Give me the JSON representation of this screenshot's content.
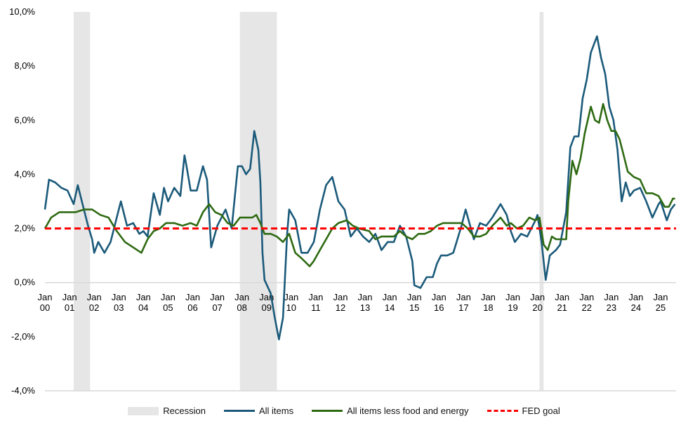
{
  "chart_data": {
    "type": "line",
    "title": "",
    "xlabel": "",
    "ylabel": "",
    "ylim": [
      -4,
      10
    ],
    "yticks": [
      "-4,0%",
      "-2,0%",
      "0,0%",
      "2,0%",
      "4,0%",
      "6,0%",
      "8,0%",
      "10,0%"
    ],
    "ytick_values": [
      -4,
      -2,
      0,
      2,
      4,
      6,
      8,
      10
    ],
    "xticks": [
      [
        "Jan",
        "00"
      ],
      [
        "Jan",
        "01"
      ],
      [
        "Jan",
        "02"
      ],
      [
        "Jan",
        "03"
      ],
      [
        "Jan",
        "04"
      ],
      [
        "Jan",
        "05"
      ],
      [
        "Jan",
        "06"
      ],
      [
        "Jan",
        "07"
      ],
      [
        "Jan",
        "08"
      ],
      [
        "Jan",
        "09"
      ],
      [
        "Jan",
        "10"
      ],
      [
        "Jan",
        "11"
      ],
      [
        "Jan",
        "12"
      ],
      [
        "Jan",
        "13"
      ],
      [
        "Jan",
        "14"
      ],
      [
        "Jan",
        "15"
      ],
      [
        "Jan",
        "16"
      ],
      [
        "Jan",
        "17"
      ],
      [
        "Jan",
        "18"
      ],
      [
        "Jan",
        "19"
      ],
      [
        "Jan",
        "20"
      ],
      [
        "Jan",
        "21"
      ],
      [
        "Jan",
        "22"
      ],
      [
        "Jan",
        "23"
      ],
      [
        "Jan",
        "24"
      ],
      [
        "Jan",
        "25"
      ]
    ],
    "xlim": [
      "2000-01",
      "2025-08"
    ],
    "grid": false,
    "legend_position": "bottom",
    "recessions": [
      {
        "start": "2001-03",
        "end": "2001-11"
      },
      {
        "start": "2007-12",
        "end": "2009-06"
      },
      {
        "start": "2020-02",
        "end": "2020-04"
      }
    ],
    "reference_line": {
      "name": "FED goal",
      "value": 2.0,
      "color": "#ff0000",
      "style": "dashed"
    },
    "series": [
      {
        "name": "All items",
        "color": "#1b5a7a",
        "points": [
          [
            "2000-01",
            2.7
          ],
          [
            "2000-03",
            3.8
          ],
          [
            "2000-06",
            3.7
          ],
          [
            "2000-09",
            3.5
          ],
          [
            "2000-12",
            3.4
          ],
          [
            "2001-03",
            2.9
          ],
          [
            "2001-05",
            3.6
          ],
          [
            "2001-08",
            2.7
          ],
          [
            "2001-10",
            2.1
          ],
          [
            "2001-12",
            1.6
          ],
          [
            "2002-01",
            1.1
          ],
          [
            "2002-03",
            1.5
          ],
          [
            "2002-06",
            1.1
          ],
          [
            "2002-09",
            1.5
          ],
          [
            "2002-12",
            2.4
          ],
          [
            "2003-02",
            3.0
          ],
          [
            "2003-05",
            2.1
          ],
          [
            "2003-08",
            2.2
          ],
          [
            "2003-11",
            1.8
          ],
          [
            "2004-01",
            1.9
          ],
          [
            "2004-03",
            1.7
          ],
          [
            "2004-06",
            3.3
          ],
          [
            "2004-09",
            2.5
          ],
          [
            "2004-11",
            3.5
          ],
          [
            "2005-01",
            3.0
          ],
          [
            "2005-04",
            3.5
          ],
          [
            "2005-07",
            3.2
          ],
          [
            "2005-09",
            4.7
          ],
          [
            "2005-10",
            4.3
          ],
          [
            "2005-12",
            3.4
          ],
          [
            "2006-03",
            3.4
          ],
          [
            "2006-06",
            4.3
          ],
          [
            "2006-08",
            3.8
          ],
          [
            "2006-10",
            1.3
          ],
          [
            "2007-01",
            2.1
          ],
          [
            "2007-05",
            2.7
          ],
          [
            "2007-08",
            2.0
          ],
          [
            "2007-11",
            4.3
          ],
          [
            "2008-01",
            4.3
          ],
          [
            "2008-03",
            4.0
          ],
          [
            "2008-05",
            4.2
          ],
          [
            "2008-07",
            5.6
          ],
          [
            "2008-09",
            4.9
          ],
          [
            "2008-10",
            3.7
          ],
          [
            "2008-11",
            1.1
          ],
          [
            "2008-12",
            0.1
          ],
          [
            "2009-03",
            -0.4
          ],
          [
            "2009-05",
            -1.3
          ],
          [
            "2009-07",
            -2.1
          ],
          [
            "2009-09",
            -1.3
          ],
          [
            "2009-11",
            1.8
          ],
          [
            "2009-12",
            2.7
          ],
          [
            "2010-03",
            2.3
          ],
          [
            "2010-06",
            1.1
          ],
          [
            "2010-09",
            1.1
          ],
          [
            "2010-12",
            1.5
          ],
          [
            "2011-03",
            2.7
          ],
          [
            "2011-06",
            3.6
          ],
          [
            "2011-09",
            3.9
          ],
          [
            "2011-12",
            3.0
          ],
          [
            "2012-03",
            2.7
          ],
          [
            "2012-06",
            1.7
          ],
          [
            "2012-09",
            2.0
          ],
          [
            "2012-12",
            1.7
          ],
          [
            "2013-03",
            1.5
          ],
          [
            "2013-06",
            1.8
          ],
          [
            "2013-09",
            1.2
          ],
          [
            "2013-12",
            1.5
          ],
          [
            "2014-03",
            1.5
          ],
          [
            "2014-06",
            2.1
          ],
          [
            "2014-09",
            1.7
          ],
          [
            "2014-12",
            0.8
          ],
          [
            "2015-01",
            -0.1
          ],
          [
            "2015-04",
            -0.2
          ],
          [
            "2015-07",
            0.2
          ],
          [
            "2015-10",
            0.2
          ],
          [
            "2015-12",
            0.7
          ],
          [
            "2016-02",
            1.0
          ],
          [
            "2016-05",
            1.0
          ],
          [
            "2016-08",
            1.1
          ],
          [
            "2016-12",
            2.1
          ],
          [
            "2017-02",
            2.7
          ],
          [
            "2017-06",
            1.6
          ],
          [
            "2017-09",
            2.2
          ],
          [
            "2017-12",
            2.1
          ],
          [
            "2018-03",
            2.4
          ],
          [
            "2018-07",
            2.9
          ],
          [
            "2018-10",
            2.5
          ],
          [
            "2018-12",
            1.9
          ],
          [
            "2019-02",
            1.5
          ],
          [
            "2019-05",
            1.8
          ],
          [
            "2019-08",
            1.7
          ],
          [
            "2019-12",
            2.3
          ],
          [
            "2020-01",
            2.5
          ],
          [
            "2020-03",
            1.5
          ],
          [
            "2020-05",
            0.1
          ],
          [
            "2020-07",
            1.0
          ],
          [
            "2020-10",
            1.2
          ],
          [
            "2020-12",
            1.4
          ],
          [
            "2021-03",
            2.6
          ],
          [
            "2021-05",
            5.0
          ],
          [
            "2021-07",
            5.4
          ],
          [
            "2021-09",
            5.4
          ],
          [
            "2021-11",
            6.8
          ],
          [
            "2022-01",
            7.5
          ],
          [
            "2022-03",
            8.5
          ],
          [
            "2022-06",
            9.1
          ],
          [
            "2022-08",
            8.3
          ],
          [
            "2022-10",
            7.7
          ],
          [
            "2022-12",
            6.5
          ],
          [
            "2023-02",
            6.0
          ],
          [
            "2023-04",
            4.9
          ],
          [
            "2023-06",
            3.0
          ],
          [
            "2023-08",
            3.7
          ],
          [
            "2023-10",
            3.2
          ],
          [
            "2023-12",
            3.4
          ],
          [
            "2024-03",
            3.5
          ],
          [
            "2024-06",
            3.0
          ],
          [
            "2024-09",
            2.4
          ],
          [
            "2024-12",
            2.9
          ],
          [
            "2025-01",
            3.0
          ],
          [
            "2025-04",
            2.3
          ],
          [
            "2025-06",
            2.7
          ],
          [
            "2025-08",
            2.9
          ]
        ]
      },
      {
        "name": "All items less food and energy",
        "color": "#2e6a12",
        "points": [
          [
            "2000-01",
            2.0
          ],
          [
            "2000-04",
            2.4
          ],
          [
            "2000-08",
            2.6
          ],
          [
            "2000-12",
            2.6
          ],
          [
            "2001-04",
            2.6
          ],
          [
            "2001-08",
            2.7
          ],
          [
            "2001-12",
            2.7
          ],
          [
            "2002-04",
            2.5
          ],
          [
            "2002-08",
            2.4
          ],
          [
            "2002-12",
            1.9
          ],
          [
            "2003-04",
            1.5
          ],
          [
            "2003-08",
            1.3
          ],
          [
            "2003-12",
            1.1
          ],
          [
            "2004-03",
            1.6
          ],
          [
            "2004-06",
            1.9
          ],
          [
            "2004-09",
            2.0
          ],
          [
            "2004-12",
            2.2
          ],
          [
            "2005-04",
            2.2
          ],
          [
            "2005-08",
            2.1
          ],
          [
            "2005-12",
            2.2
          ],
          [
            "2006-03",
            2.1
          ],
          [
            "2006-06",
            2.6
          ],
          [
            "2006-09",
            2.9
          ],
          [
            "2006-12",
            2.6
          ],
          [
            "2007-03",
            2.5
          ],
          [
            "2007-06",
            2.2
          ],
          [
            "2007-09",
            2.1
          ],
          [
            "2007-12",
            2.4
          ],
          [
            "2008-03",
            2.4
          ],
          [
            "2008-06",
            2.4
          ],
          [
            "2008-08",
            2.5
          ],
          [
            "2008-10",
            2.2
          ],
          [
            "2008-12",
            1.8
          ],
          [
            "2009-03",
            1.8
          ],
          [
            "2009-06",
            1.7
          ],
          [
            "2009-09",
            1.5
          ],
          [
            "2009-12",
            1.8
          ],
          [
            "2010-03",
            1.1
          ],
          [
            "2010-06",
            0.9
          ],
          [
            "2010-10",
            0.6
          ],
          [
            "2010-12",
            0.8
          ],
          [
            "2011-03",
            1.2
          ],
          [
            "2011-06",
            1.6
          ],
          [
            "2011-09",
            2.0
          ],
          [
            "2011-12",
            2.2
          ],
          [
            "2012-04",
            2.3
          ],
          [
            "2012-07",
            2.1
          ],
          [
            "2012-10",
            2.0
          ],
          [
            "2013-03",
            1.9
          ],
          [
            "2013-06",
            1.6
          ],
          [
            "2013-09",
            1.7
          ],
          [
            "2013-12",
            1.7
          ],
          [
            "2014-03",
            1.7
          ],
          [
            "2014-06",
            1.9
          ],
          [
            "2014-09",
            1.7
          ],
          [
            "2014-12",
            1.6
          ],
          [
            "2015-03",
            1.8
          ],
          [
            "2015-06",
            1.8
          ],
          [
            "2015-09",
            1.9
          ],
          [
            "2015-12",
            2.1
          ],
          [
            "2016-03",
            2.2
          ],
          [
            "2016-06",
            2.2
          ],
          [
            "2016-09",
            2.2
          ],
          [
            "2016-12",
            2.2
          ],
          [
            "2017-03",
            2.0
          ],
          [
            "2017-06",
            1.7
          ],
          [
            "2017-09",
            1.7
          ],
          [
            "2017-12",
            1.8
          ],
          [
            "2018-03",
            2.1
          ],
          [
            "2018-07",
            2.4
          ],
          [
            "2018-10",
            2.1
          ],
          [
            "2018-12",
            2.2
          ],
          [
            "2019-03",
            2.0
          ],
          [
            "2019-06",
            2.1
          ],
          [
            "2019-09",
            2.4
          ],
          [
            "2019-12",
            2.3
          ],
          [
            "2020-02",
            2.4
          ],
          [
            "2020-04",
            1.4
          ],
          [
            "2020-06",
            1.2
          ],
          [
            "2020-08",
            1.7
          ],
          [
            "2020-10",
            1.6
          ],
          [
            "2020-12",
            1.6
          ],
          [
            "2021-03",
            1.6
          ],
          [
            "2021-04",
            3.0
          ],
          [
            "2021-06",
            4.5
          ],
          [
            "2021-08",
            4.0
          ],
          [
            "2021-10",
            4.6
          ],
          [
            "2021-12",
            5.5
          ],
          [
            "2022-03",
            6.5
          ],
          [
            "2022-05",
            6.0
          ],
          [
            "2022-07",
            5.9
          ],
          [
            "2022-09",
            6.6
          ],
          [
            "2022-11",
            6.0
          ],
          [
            "2023-01",
            5.6
          ],
          [
            "2023-03",
            5.6
          ],
          [
            "2023-05",
            5.3
          ],
          [
            "2023-07",
            4.7
          ],
          [
            "2023-09",
            4.1
          ],
          [
            "2023-12",
            3.9
          ],
          [
            "2024-03",
            3.8
          ],
          [
            "2024-06",
            3.3
          ],
          [
            "2024-09",
            3.3
          ],
          [
            "2024-12",
            3.2
          ],
          [
            "2025-03",
            2.8
          ],
          [
            "2025-05",
            2.8
          ],
          [
            "2025-07",
            3.1
          ],
          [
            "2025-08",
            3.1
          ]
        ]
      }
    ]
  },
  "legend": {
    "recession": "Recession",
    "all_items": "All items",
    "core": "All items less food and energy",
    "fed_goal": "FED goal",
    "recession_color": "#e6e6e6"
  }
}
